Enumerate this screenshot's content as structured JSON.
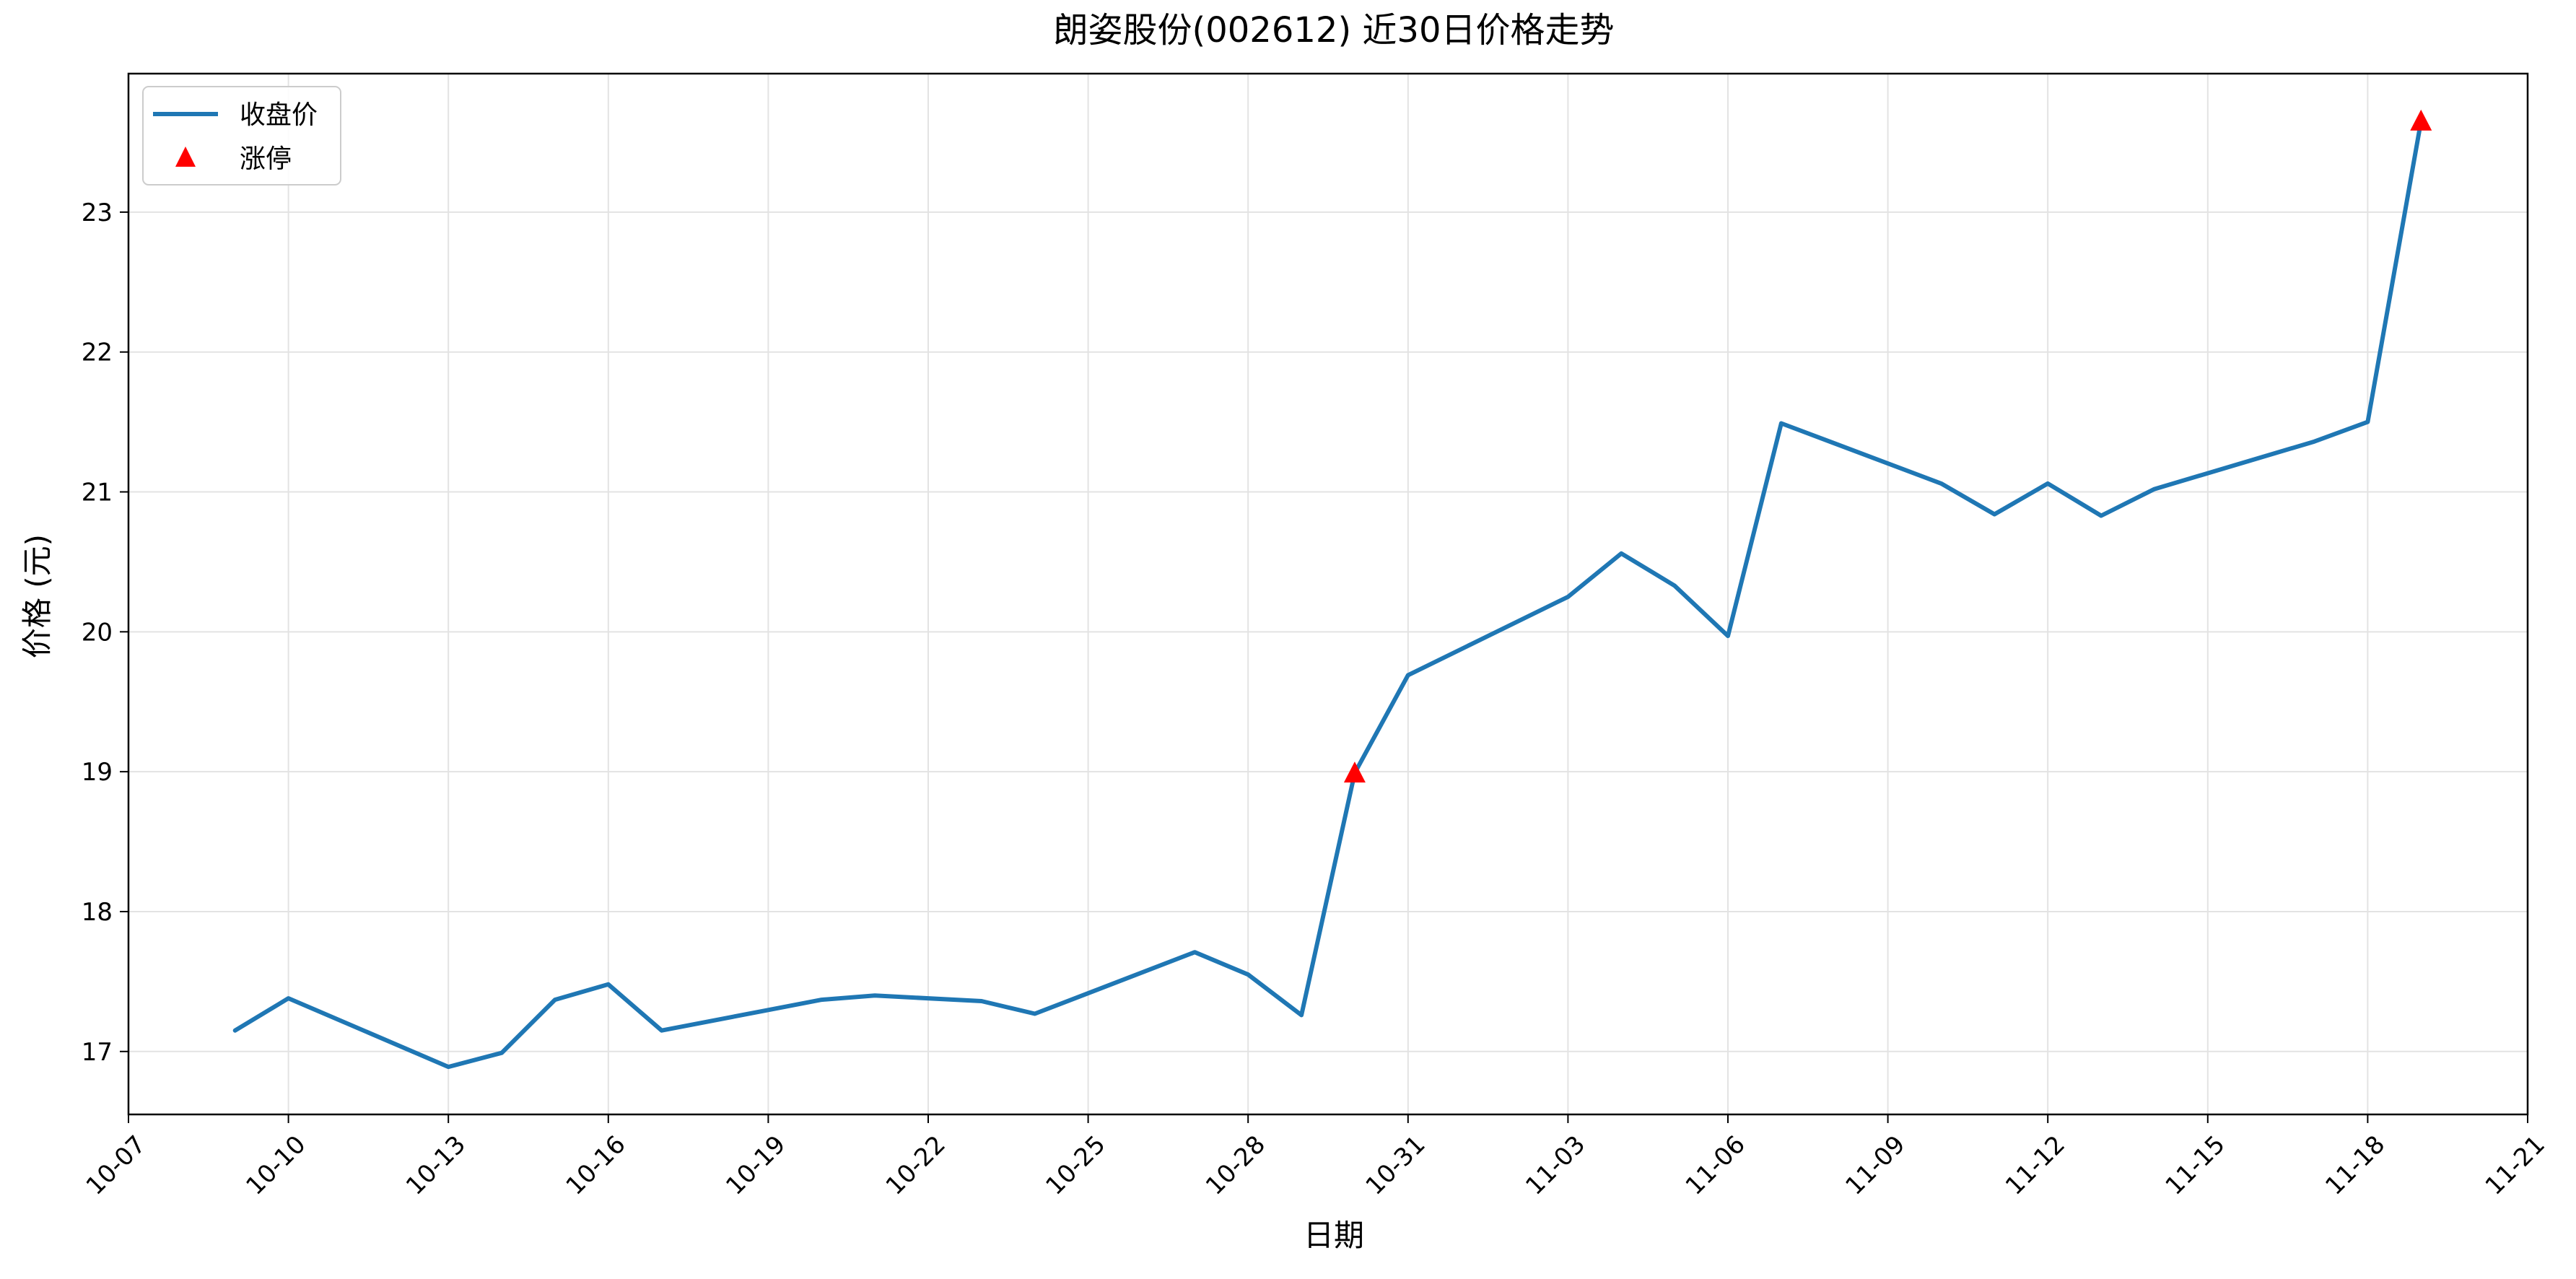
{
  "chart_data": {
    "type": "line",
    "title": "朗姿股份(002612) 近30日价格走势",
    "xlabel": "日期",
    "ylabel": "价格 (元)",
    "x_axis_type": "date",
    "xlim": [
      "2025-10-07",
      "2025-11-21"
    ],
    "ylim": [
      16.55,
      23.99
    ],
    "x_ticks": [
      {
        "date": "2025-10-07",
        "label": "10-07"
      },
      {
        "date": "2025-10-10",
        "label": "10-10"
      },
      {
        "date": "2025-10-13",
        "label": "10-13"
      },
      {
        "date": "2025-10-16",
        "label": "10-16"
      },
      {
        "date": "2025-10-19",
        "label": "10-19"
      },
      {
        "date": "2025-10-22",
        "label": "10-22"
      },
      {
        "date": "2025-10-25",
        "label": "10-25"
      },
      {
        "date": "2025-10-28",
        "label": "10-28"
      },
      {
        "date": "2025-10-31",
        "label": "10-31"
      },
      {
        "date": "2025-11-03",
        "label": "11-03"
      },
      {
        "date": "2025-11-06",
        "label": "11-06"
      },
      {
        "date": "2025-11-09",
        "label": "11-09"
      },
      {
        "date": "2025-11-12",
        "label": "11-12"
      },
      {
        "date": "2025-11-15",
        "label": "11-15"
      },
      {
        "date": "2025-11-18",
        "label": "11-18"
      },
      {
        "date": "2025-11-21",
        "label": "11-21"
      }
    ],
    "y_ticks": [
      17,
      18,
      19,
      20,
      21,
      22,
      23
    ],
    "grid": true,
    "legend_position": "top-left",
    "series": [
      {
        "name": "收盘价",
        "kind": "line",
        "color": "#1f77b4",
        "points": [
          {
            "x": "2025-10-09",
            "y": 17.15
          },
          {
            "x": "2025-10-10",
            "y": 17.38
          },
          {
            "x": "2025-10-13",
            "y": 16.89
          },
          {
            "x": "2025-10-14",
            "y": 16.99
          },
          {
            "x": "2025-10-15",
            "y": 17.37
          },
          {
            "x": "2025-10-16",
            "y": 17.48
          },
          {
            "x": "2025-10-17",
            "y": 17.15
          },
          {
            "x": "2025-10-20",
            "y": 17.37
          },
          {
            "x": "2025-10-21",
            "y": 17.4
          },
          {
            "x": "2025-10-23",
            "y": 17.36
          },
          {
            "x": "2025-10-24",
            "y": 17.27
          },
          {
            "x": "2025-10-27",
            "y": 17.71
          },
          {
            "x": "2025-10-28",
            "y": 17.55
          },
          {
            "x": "2025-10-29",
            "y": 17.26
          },
          {
            "x": "2025-10-30",
            "y": 18.99
          },
          {
            "x": "2025-10-31",
            "y": 19.69
          },
          {
            "x": "2025-11-03",
            "y": 20.25
          },
          {
            "x": "2025-11-04",
            "y": 20.56
          },
          {
            "x": "2025-11-05",
            "y": 20.33
          },
          {
            "x": "2025-11-06",
            "y": 19.97
          },
          {
            "x": "2025-11-07",
            "y": 21.49
          },
          {
            "x": "2025-11-10",
            "y": 21.06
          },
          {
            "x": "2025-11-11",
            "y": 20.84
          },
          {
            "x": "2025-11-12",
            "y": 21.06
          },
          {
            "x": "2025-11-13",
            "y": 20.83
          },
          {
            "x": "2025-11-14",
            "y": 21.02
          },
          {
            "x": "2025-11-17",
            "y": 21.36
          },
          {
            "x": "2025-11-18",
            "y": 21.5
          },
          {
            "x": "2025-11-19",
            "y": 23.65
          }
        ]
      },
      {
        "name": "涨停",
        "kind": "marker",
        "marker": "triangle-up",
        "color": "#ff0000",
        "points": [
          {
            "x": "2025-10-30",
            "y": 18.99
          },
          {
            "x": "2025-11-19",
            "y": 23.65
          }
        ]
      }
    ]
  }
}
